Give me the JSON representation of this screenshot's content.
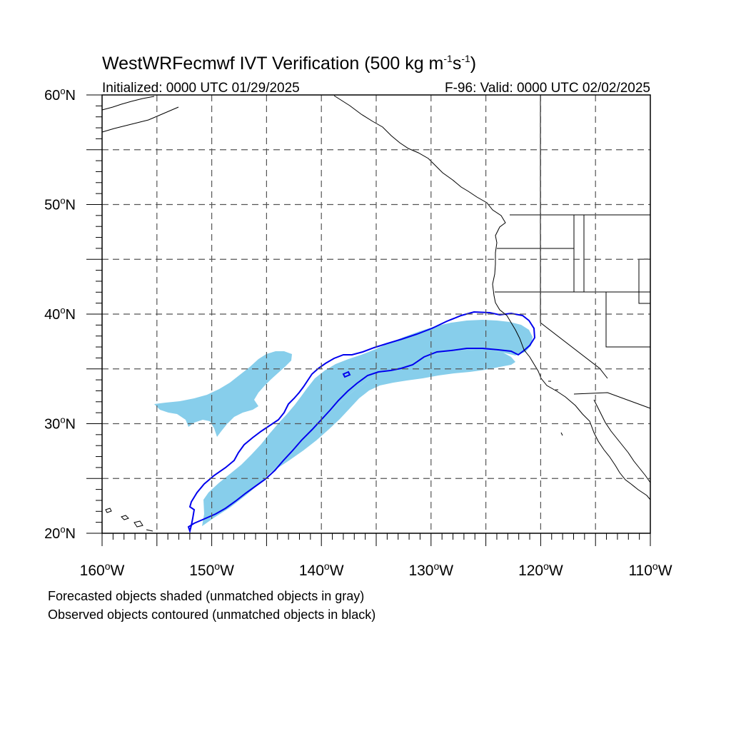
{
  "title": {
    "main": "WestWRFecmwf IVT Verification (500 kg m",
    "unit_exp1": "-1",
    "unit_mid": "s",
    "unit_exp2": "-1",
    "unit_close": ")"
  },
  "subtitle": {
    "initialized": "Initialized: 0000 UTC 01/29/2025",
    "valid": "F-96: Valid: 0000 UTC 02/02/2025"
  },
  "map": {
    "lon_range": [
      -160,
      -110
    ],
    "lat_range": [
      20,
      60
    ],
    "grid": true,
    "colors": {
      "forecast_fill": "#87CEEB",
      "observed_contour": "#0000EE",
      "coastline": "#000000",
      "grid_line": "#555555"
    },
    "lat_labels": [
      "20",
      "30",
      "40",
      "50",
      "60"
    ],
    "lat_suffix": "N",
    "lon_labels": [
      "160",
      "150",
      "140",
      "130",
      "120",
      "110"
    ],
    "lon_suffix": "W",
    "degree": "o"
  },
  "footer": {
    "line1": "Forecasted objects shaded (unmatched objects in gray)",
    "line2": "Observed objects contoured (unmatched objects in black)"
  }
}
